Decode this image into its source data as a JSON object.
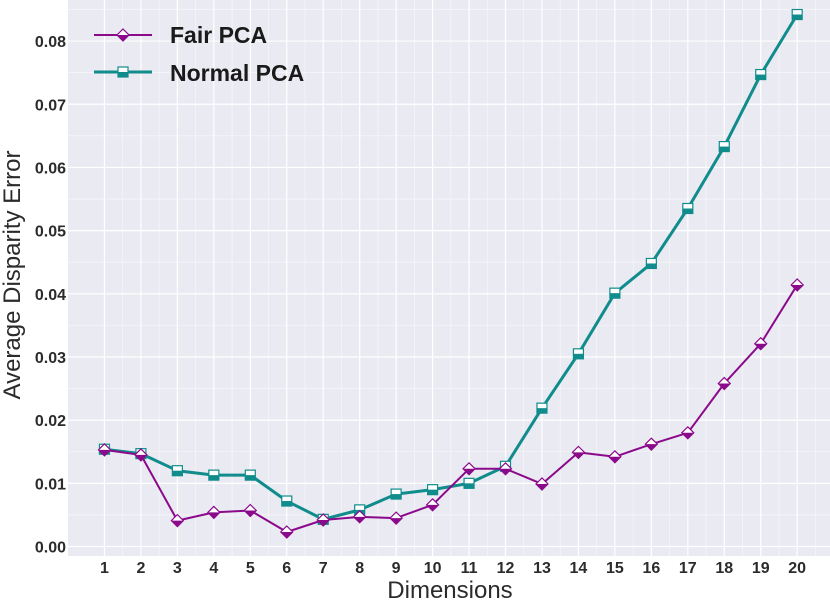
{
  "chart_data": {
    "type": "line",
    "title": "",
    "xlabel": "Dimensions",
    "ylabel": "Average Disparity Error",
    "x": [
      1,
      2,
      3,
      4,
      5,
      6,
      7,
      8,
      9,
      10,
      11,
      12,
      13,
      14,
      15,
      16,
      17,
      18,
      19,
      20
    ],
    "xtick_labels": [
      "1",
      "2",
      "3",
      "4",
      "5",
      "6",
      "7",
      "8",
      "9",
      "10",
      "11",
      "12",
      "13",
      "14",
      "15",
      "16",
      "17",
      "18",
      "19",
      "20"
    ],
    "yticks": [
      0.0,
      0.01,
      0.02,
      0.03,
      0.04,
      0.05,
      0.06,
      0.07,
      0.08
    ],
    "ytick_labels": [
      "0.00",
      "0.01",
      "0.02",
      "0.03",
      "0.04",
      "0.05",
      "0.06",
      "0.07",
      "0.08"
    ],
    "xlim": [
      0.0,
      20.9
    ],
    "ylim": [
      -0.0015,
      0.0865
    ],
    "grid": true,
    "legend_position": "top-left",
    "series": [
      {
        "name": "Fair PCA",
        "color": "#8B0A8B",
        "marker": "diamond",
        "values": [
          0.0153,
          0.0145,
          0.0041,
          0.0054,
          0.0057,
          0.0023,
          0.0042,
          0.0047,
          0.0045,
          0.0066,
          0.0123,
          0.0123,
          0.0099,
          0.0149,
          0.0142,
          0.0162,
          0.018,
          0.0258,
          0.0321,
          0.0414
        ]
      },
      {
        "name": "Normal PCA",
        "color": "#108C8C",
        "marker": "square",
        "values": [
          0.0154,
          0.0147,
          0.012,
          0.0113,
          0.0113,
          0.0072,
          0.0043,
          0.0058,
          0.0083,
          0.009,
          0.01,
          0.0127,
          0.0219,
          0.0305,
          0.0401,
          0.0448,
          0.0535,
          0.0633,
          0.0747,
          0.0842
        ]
      }
    ]
  }
}
